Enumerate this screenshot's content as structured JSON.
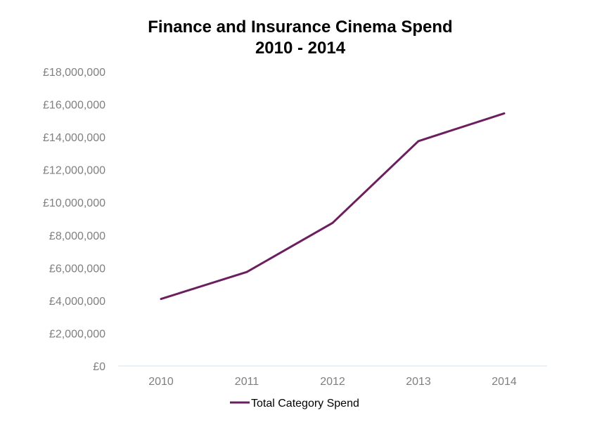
{
  "chart_data": {
    "type": "line",
    "title_lines": [
      "Finance and Insurance Cinema Spend",
      "2010 - 2014"
    ],
    "categories": [
      "2010",
      "2011",
      "2012",
      "2013",
      "2014"
    ],
    "series": [
      {
        "name": "Total Category Spend",
        "values": [
          4100000,
          5750000,
          8750000,
          13750000,
          15450000
        ],
        "color": "#6c1f5f"
      }
    ],
    "y_ticks": [
      0,
      2000000,
      4000000,
      6000000,
      8000000,
      10000000,
      12000000,
      14000000,
      16000000,
      18000000
    ],
    "y_tick_labels": [
      "£0",
      "£2,000,000",
      "£4,000,000",
      "£6,000,000",
      "£8,000,000",
      "£10,000,000",
      "£12,000,000",
      "£14,000,000",
      "£16,000,000",
      "£18,000,000"
    ],
    "ylim": [
      0,
      18000000
    ],
    "grid": false,
    "legend_position": "bottom",
    "axis_color": "#e0ecf5"
  }
}
